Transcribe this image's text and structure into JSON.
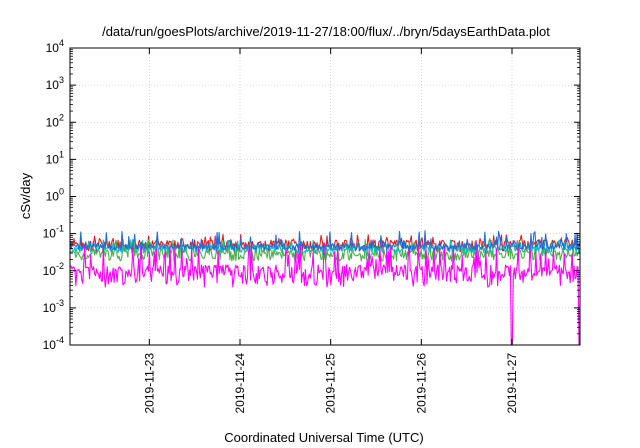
{
  "chart_data": {
    "type": "line",
    "title": "/data/run/goesPlots/archive/2019-11-27/18:00/flux/../bryn/5daysEarthData.plot",
    "xlabel": "Coordinated Universal Time (UTC)",
    "ylabel": "cSv/day",
    "y_scale": "log",
    "ylim": [
      0.0001,
      10000
    ],
    "y_ticks": [
      {
        "base": "10",
        "exp": "-4"
      },
      {
        "base": "10",
        "exp": "-3"
      },
      {
        "base": "10",
        "exp": "-2"
      },
      {
        "base": "10",
        "exp": "-1"
      },
      {
        "base": "10",
        "exp": "0"
      },
      {
        "base": "10",
        "exp": "1"
      },
      {
        "base": "10",
        "exp": "2"
      },
      {
        "base": "10",
        "exp": "3"
      },
      {
        "base": "10",
        "exp": "4"
      }
    ],
    "xlim": [
      "2019-11-22T03:00",
      "2019-11-27T18:00"
    ],
    "x_ticks": [
      "2019-11-23",
      "2019-11-24",
      "2019-11-25",
      "2019-11-26",
      "2019-11-27"
    ],
    "grid": true,
    "legend": "none",
    "series": [
      {
        "color": "#e41a1c",
        "base": 0.05,
        "spread": 0.35,
        "spike": 0.095
      },
      {
        "color": "#4daf4a",
        "base": 0.028,
        "spread": 0.35,
        "spike": 0.07
      },
      {
        "color": "#00bfbf",
        "base": 0.04,
        "spread": 0.25,
        "spike": 0.075
      },
      {
        "color": "#ff00ff",
        "base": 0.009,
        "spread": 0.6,
        "spike": 0.06,
        "dropouts": [
          "2019-11-27T00:00",
          "2019-11-27T18:00"
        ],
        "dropout_min": 0.0001
      },
      {
        "color": "#1e6fd9",
        "base": 0.045,
        "spread": 0.2,
        "spike": 0.12
      }
    ]
  }
}
